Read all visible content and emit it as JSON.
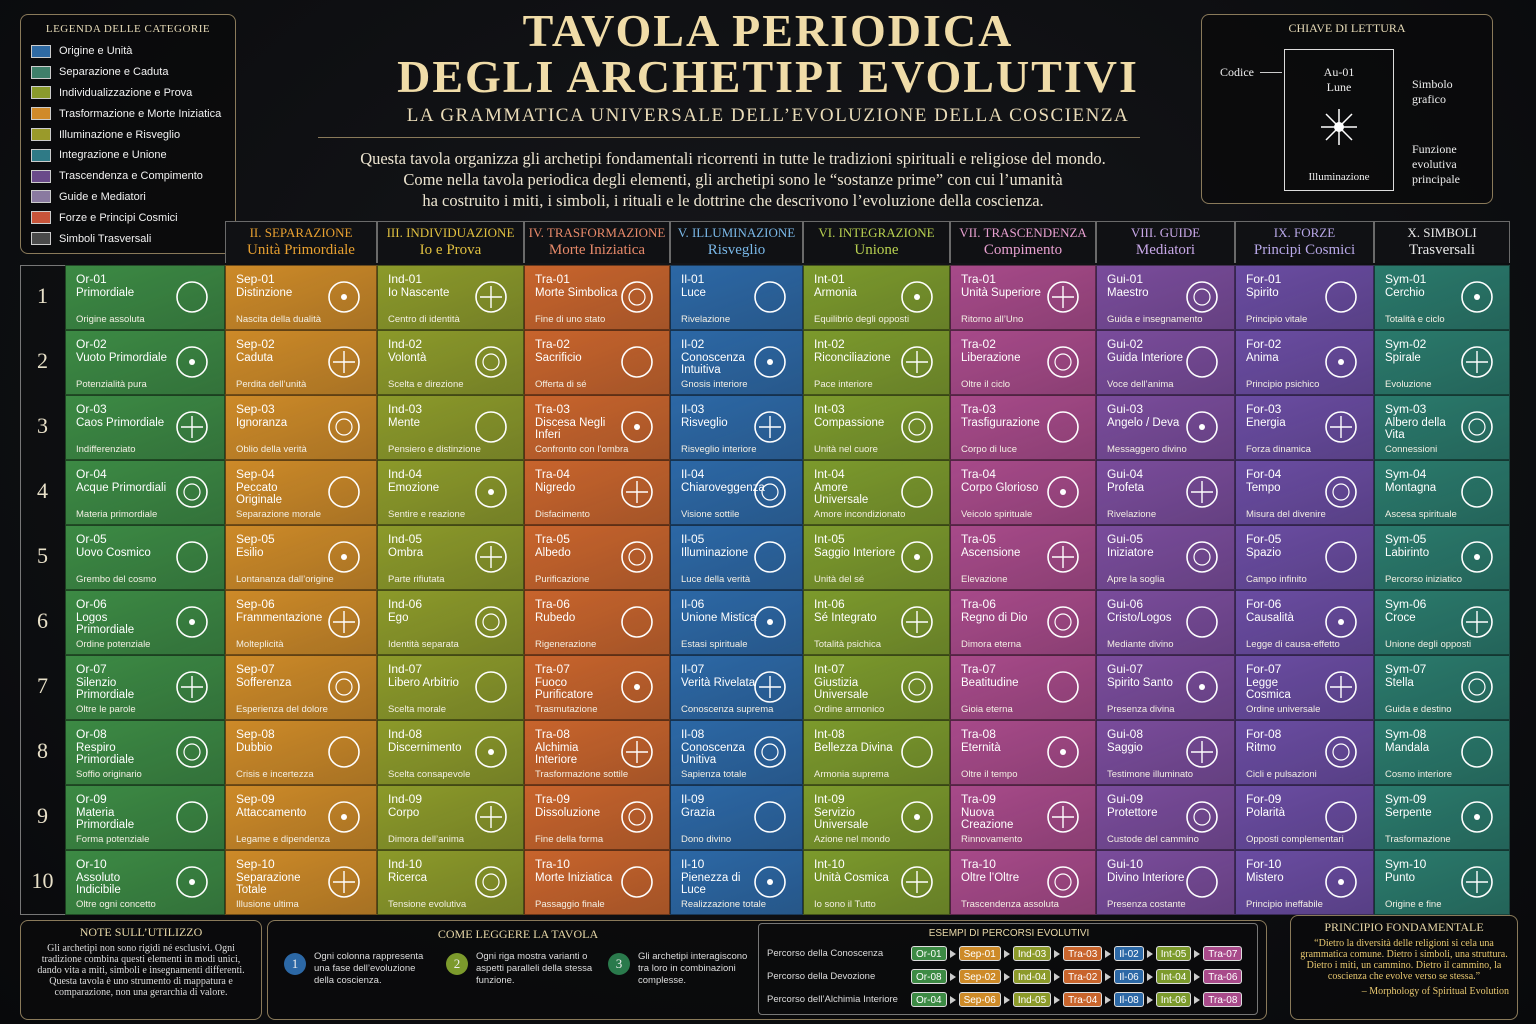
{
  "header": {
    "title_lines": [
      "TAVOLA PERIODICA",
      "DEGLI ARCHETIPI EVOLUTIVI"
    ],
    "subtitle": "LA GRAMMATICA UNIVERSALE DELL’EVOLUZIONE DELLA COSCIENZA",
    "intro_lines": [
      "Questa tavola organizza gli archetipi fondamentali ricorrenti in tutte le tradizioni spirituali e religiose del mondo.",
      "Come nella tavola periodica degli elementi, gli archetipi sono le “sostanze prime” con cui l’umanità",
      "ha costruito i miti, i simboli, i rituali e le dottrine che descrivono l’evoluzione della coscienza."
    ]
  },
  "legend": {
    "title": "LEGENDA DELLE CATEGORIE",
    "items": [
      {
        "label": "Origine e Unità",
        "color": "#2f6aa3"
      },
      {
        "label": "Separazione e Caduta",
        "color": "#3f7f6a"
      },
      {
        "label": "Individualizzazione e Prova",
        "color": "#8a9a2c"
      },
      {
        "label": "Trasformazione e Morte Iniziatica",
        "color": "#d08a2a"
      },
      {
        "label": "Illuminazione e Risveglio",
        "color": "#9a9a2a"
      },
      {
        "label": "Integrazione e Unione",
        "color": "#2f7a86"
      },
      {
        "label": "Trascendenza e Compimento",
        "color": "#6a4a8a"
      },
      {
        "label": "Guide e Mediatori",
        "color": "#8a7aa0"
      },
      {
        "label": "Forze e Principi Cosmici",
        "color": "#c8543a"
      },
      {
        "label": "Simboli Trasversali",
        "color": "#4a4a4a"
      }
    ]
  },
  "key": {
    "title": "CHIAVE DI LETTURA",
    "code_label": "Codice",
    "code": "Au-01",
    "name": "Lune",
    "function": "Illuminazione",
    "symbol_label": "Simbolo grafico",
    "function_label": "Funzione evolutiva principale"
  },
  "rows": [
    "1",
    "2",
    "3",
    "4",
    "5",
    "6",
    "7",
    "8",
    "9",
    "10"
  ],
  "columns": [
    {
      "color": "#3c8a44",
      "cells": [
        {
          "code": "Or-01",
          "name": "Primordiale",
          "function": "Origine assoluta"
        },
        {
          "code": "Or-02",
          "name": "Vuoto Primordiale",
          "function": "Potenzialità pura"
        },
        {
          "code": "Or-03",
          "name": "Caos Primordiale",
          "function": "Indifferenziato"
        },
        {
          "code": "Or-04",
          "name": "Acque Primordiali",
          "function": "Materia primordiale"
        },
        {
          "code": "Or-05",
          "name": "Uovo Cosmico",
          "function": "Grembo del cosmo"
        },
        {
          "code": "Or-06",
          "name": "Logos Primordiale",
          "function": "Ordine potenziale"
        },
        {
          "code": "Or-07",
          "name": "Silenzio Primordiale",
          "function": "Oltre le parole"
        },
        {
          "code": "Or-08",
          "name": "Respiro Primordiale",
          "function": "Soffio originario"
        },
        {
          "code": "Or-09",
          "name": "Materia Primordiale",
          "function": "Forma potenziale"
        },
        {
          "code": "Or-10",
          "name": "Assoluto Indicibile",
          "function": "Oltre ogni concetto"
        }
      ]
    },
    {
      "title": "II. SEPARAZIONE",
      "subtitle": "Unità Primordiale",
      "header_color": "#e8a030",
      "color": "#cd8a28",
      "cells": [
        {
          "code": "Sep-01",
          "name": "Distinzione",
          "function": "Nascita della dualità"
        },
        {
          "code": "Sep-02",
          "name": "Caduta",
          "function": "Perdita dell’unità"
        },
        {
          "code": "Sep-03",
          "name": "Ignoranza",
          "function": "Oblio della verità"
        },
        {
          "code": "Sep-04",
          "name": "Peccato Originale",
          "function": "Separazione morale"
        },
        {
          "code": "Sep-05",
          "name": "Esilio",
          "function": "Lontananza dall’origine"
        },
        {
          "code": "Sep-06",
          "name": "Frammentazione",
          "function": "Molteplicità"
        },
        {
          "code": "Sep-07",
          "name": "Sofferenza",
          "function": "Esperienza del dolore"
        },
        {
          "code": "Sep-08",
          "name": "Dubbio",
          "function": "Crisis e incertezza"
        },
        {
          "code": "Sep-09",
          "name": "Attaccamento",
          "function": "Legame e dipendenza"
        },
        {
          "code": "Sep-10",
          "name": "Separazione Totale",
          "function": "Illusione ultima"
        }
      ]
    },
    {
      "title": "III. INDIVIDUAZIONE",
      "subtitle": "Io e Prova",
      "header_color": "#e0c040",
      "color": "#8c9a2a",
      "cells": [
        {
          "code": "Ind-01",
          "name": "Io Nascente",
          "function": "Centro di identità"
        },
        {
          "code": "Ind-02",
          "name": "Volontà",
          "function": "Scelta e direzione"
        },
        {
          "code": "Ind-03",
          "name": "Mente",
          "function": "Pensiero e distinzione"
        },
        {
          "code": "Ind-04",
          "name": "Emozione",
          "function": "Sentire e reazione"
        },
        {
          "code": "Ind-05",
          "name": "Ombra",
          "function": "Parte rifiutata"
        },
        {
          "code": "Ind-06",
          "name": "Ego",
          "function": "Identità separata"
        },
        {
          "code": "Ind-07",
          "name": "Libero Arbitrio",
          "function": "Scelta morale"
        },
        {
          "code": "Ind-08",
          "name": "Discernimento",
          "function": "Scelta consapevole"
        },
        {
          "code": "Ind-09",
          "name": "Corpo",
          "function": "Dimora dell’anima"
        },
        {
          "code": "Ind-10",
          "name": "Ricerca",
          "function": "Tensione evolutiva"
        }
      ]
    },
    {
      "title": "IV. TRASFORMAZIONE",
      "subtitle": "Morte Iniziatica",
      "header_color": "#e88a6a",
      "color": "#c8642c",
      "cells": [
        {
          "code": "Tra-01",
          "name": "Morte Simbolica",
          "function": "Fine di uno stato"
        },
        {
          "code": "Tra-02",
          "name": "Sacrificio",
          "function": "Offerta di sé"
        },
        {
          "code": "Tra-03",
          "name": "Discesa Negli Inferi",
          "function": "Confronto con l’ombra"
        },
        {
          "code": "Tra-04",
          "name": "Nigredo",
          "function": "Disfacimento"
        },
        {
          "code": "Tra-05",
          "name": "Albedo",
          "function": "Purificazione"
        },
        {
          "code": "Tra-06",
          "name": "Rubedo",
          "function": "Rigenerazione"
        },
        {
          "code": "Tra-07",
          "name": "Fuoco Purificatore",
          "function": "Trasmutazione"
        },
        {
          "code": "Tra-08",
          "name": "Alchimia Interiore",
          "function": "Trasformazione sottile"
        },
        {
          "code": "Tra-09",
          "name": "Dissoluzione",
          "function": "Fine della forma"
        },
        {
          "code": "Tra-10",
          "name": "Morte Iniziatica",
          "function": "Passaggio finale"
        }
      ]
    },
    {
      "title": "V. ILLUMINAZIONE",
      "subtitle": "Risveglio",
      "header_color": "#7ab8e8",
      "color": "#2c68a6",
      "cells": [
        {
          "code": "Il-01",
          "name": "Luce",
          "function": "Rivelazione"
        },
        {
          "code": "Il-02",
          "name": "Conoscenza Intuitiva",
          "function": "Gnosis interiore"
        },
        {
          "code": "Il-03",
          "name": "Risveglio",
          "function": "Risveglio interiore"
        },
        {
          "code": "Il-04",
          "name": "Chiaroveggenza",
          "function": "Visione sottile"
        },
        {
          "code": "Il-05",
          "name": "Illuminazione",
          "function": "Luce della verità"
        },
        {
          "code": "Il-06",
          "name": "Unione Mistica",
          "function": "Estasi spirituale"
        },
        {
          "code": "Il-07",
          "name": "Verità Rivelata",
          "function": "Conoscenza suprema"
        },
        {
          "code": "Il-08",
          "name": "Conoscenza Unitiva",
          "function": "Sapienza totale"
        },
        {
          "code": "Il-09",
          "name": "Grazia",
          "function": "Dono divino"
        },
        {
          "code": "Il-10",
          "name": "Pienezza di Luce",
          "function": "Realizzazione totale"
        }
      ]
    },
    {
      "title": "VI. INTEGRAZIONE",
      "subtitle": "Unione",
      "header_color": "#b8d050",
      "color": "#7c9a2c",
      "cells": [
        {
          "code": "Int-01",
          "name": "Armonia",
          "function": "Equilibrio degli opposti"
        },
        {
          "code": "Int-02",
          "name": "Riconciliazione",
          "function": "Pace interiore"
        },
        {
          "code": "Int-03",
          "name": "Compassione",
          "function": "Unità nel cuore"
        },
        {
          "code": "Int-04",
          "name": "Amore Universale",
          "function": "Amore incondizionato"
        },
        {
          "code": "Int-05",
          "name": "Saggio Interiore",
          "function": "Unità del sé"
        },
        {
          "code": "Int-06",
          "name": "Sé Integrato",
          "function": "Totalità psichica"
        },
        {
          "code": "Int-07",
          "name": "Giustizia Universale",
          "function": "Ordine armonico"
        },
        {
          "code": "Int-08",
          "name": "Bellezza Divina",
          "function": "Armonia suprema"
        },
        {
          "code": "Int-09",
          "name": "Servizio Universale",
          "function": "Azione nel mondo"
        },
        {
          "code": "Int-10",
          "name": "Unità Cosmica",
          "function": "Io sono il Tutto"
        }
      ]
    },
    {
      "title": "VII. TRASCENDENZA",
      "subtitle": "Compimento",
      "header_color": "#e8a0d0",
      "color": "#a84a8a",
      "cells": [
        {
          "code": "Tra-01",
          "name": "Unità Superiore",
          "function": "Ritorno all’Uno"
        },
        {
          "code": "Tra-02",
          "name": "Liberazione",
          "function": "Oltre il ciclo"
        },
        {
          "code": "Tra-03",
          "name": "Trasfigurazione",
          "function": "Corpo di luce"
        },
        {
          "code": "Tra-04",
          "name": "Corpo Glorioso",
          "function": "Veicolo spirituale"
        },
        {
          "code": "Tra-05",
          "name": "Ascensione",
          "function": "Elevazione"
        },
        {
          "code": "Tra-06",
          "name": "Regno di Dio",
          "function": "Dimora eterna"
        },
        {
          "code": "Tra-07",
          "name": "Beatitudine",
          "function": "Gioia eterna"
        },
        {
          "code": "Tra-08",
          "name": "Eternità",
          "function": "Oltre il tempo"
        },
        {
          "code": "Tra-09",
          "name": "Nuova Creazione",
          "function": "Rinnovamento"
        },
        {
          "code": "Tra-10",
          "name": "Oltre l’Oltre",
          "function": "Trascendenza assoluta"
        }
      ]
    },
    {
      "title": "VIII. GUIDE",
      "subtitle": "Mediatori",
      "header_color": "#c8a8e8",
      "color": "#7a4c9c",
      "cells": [
        {
          "code": "Gui-01",
          "name": "Maestro",
          "function": "Guida e insegnamento"
        },
        {
          "code": "Gui-02",
          "name": "Guida Interiore",
          "function": "Voce dell’anima"
        },
        {
          "code": "Gui-03",
          "name": "Angelo / Deva",
          "function": "Messaggero divino"
        },
        {
          "code": "Gui-04",
          "name": "Profeta",
          "function": "Rivelazione"
        },
        {
          "code": "Gui-05",
          "name": "Iniziatore",
          "function": "Apre la soglia"
        },
        {
          "code": "Gui-06",
          "name": "Cristo/Logos",
          "function": "Mediante divino"
        },
        {
          "code": "Gui-07",
          "name": "Spirito Santo",
          "function": "Presenza divina"
        },
        {
          "code": "Gui-08",
          "name": "Saggio",
          "function": "Testimone illuminato"
        },
        {
          "code": "Gui-09",
          "name": "Protettore",
          "function": "Custode del cammino"
        },
        {
          "code": "Gui-10",
          "name": "Divino Interiore",
          "function": "Presenza costante"
        }
      ]
    },
    {
      "title": "IX. FORZE",
      "subtitle": "Principi Cosmici",
      "header_color": "#b8a8e8",
      "color": "#6a4ca2",
      "cells": [
        {
          "code": "For-01",
          "name": "Spirito",
          "function": "Principio vitale"
        },
        {
          "code": "For-02",
          "name": "Anima",
          "function": "Principio psichico"
        },
        {
          "code": "For-03",
          "name": "Energia",
          "function": "Forza dinamica"
        },
        {
          "code": "For-04",
          "name": "Tempo",
          "function": "Misura del divenire"
        },
        {
          "code": "For-05",
          "name": "Spazio",
          "function": "Campo infinito"
        },
        {
          "code": "For-06",
          "name": "Causalità",
          "function": "Legge di causa-effetto"
        },
        {
          "code": "For-07",
          "name": "Legge Cosmica",
          "function": "Ordine universale"
        },
        {
          "code": "For-08",
          "name": "Ritmo",
          "function": "Cicli e pulsazioni"
        },
        {
          "code": "For-09",
          "name": "Polarità",
          "function": "Opposti complementari"
        },
        {
          "code": "For-10",
          "name": "Mistero",
          "function": "Principio ineffabile"
        }
      ]
    },
    {
      "title": "X. SIMBOLI",
      "subtitle": "Trasversali",
      "header_color": "#e8e8e8",
      "color": "#2a7a6c",
      "cells": [
        {
          "code": "Sym-01",
          "name": "Cerchio",
          "function": "Totalità e ciclo"
        },
        {
          "code": "Sym-02",
          "name": "Spirale",
          "function": "Evoluzione"
        },
        {
          "code": "Sym-03",
          "name": "Albero della Vita",
          "function": "Connessioni"
        },
        {
          "code": "Sym-04",
          "name": "Montagna",
          "function": "Ascesa spirituale"
        },
        {
          "code": "Sym-05",
          "name": "Labirinto",
          "function": "Percorso iniziatico"
        },
        {
          "code": "Sym-06",
          "name": "Croce",
          "function": "Unione degli opposti"
        },
        {
          "code": "Sym-07",
          "name": "Stella",
          "function": "Guida e destino"
        },
        {
          "code": "Sym-08",
          "name": "Mandala",
          "function": "Cosmo interiore"
        },
        {
          "code": "Sym-09",
          "name": "Serpente",
          "function": "Trasformazione"
        },
        {
          "code": "Sym-10",
          "name": "Punto",
          "function": "Origine e fine"
        }
      ]
    }
  ],
  "notes": {
    "title": "NOTE SULL’UTILIZZO",
    "paragraphs": [
      "Gli archetipi non sono rigidi né esclusivi. Ogni tradizione combina questi elementi in modi unici, dando vita a miti, simboli e insegnamenti differenti.",
      "Questa tavola è uno strumento di mappatura e comparazione, non una gerarchia di valore."
    ]
  },
  "how_to_read": {
    "title": "COME LEGGERE LA TAVOLA",
    "items": [
      {
        "number": "1",
        "text": "Ogni colonna rappresenta una fase dell’evoluzione della coscienza.",
        "color": "#2c68a6"
      },
      {
        "number": "2",
        "text": "Ogni riga mostra varianti o aspetti paralleli della stessa funzione.",
        "color": "#7c9a2c"
      },
      {
        "number": "3",
        "text": "Gli archetipi interagiscono tra loro in combinazioni complesse.",
        "color": "#2a7a4c"
      }
    ]
  },
  "paths": {
    "title": "ESEMPI DI PERCORSI EVOLUTIVI",
    "items": [
      {
        "name": "Percorso della Conoscenza",
        "codes": [
          "Or-01",
          "Sep-01",
          "Ind-03",
          "Tra-03",
          "Il-02",
          "Int-05",
          "Tra-07"
        ]
      },
      {
        "name": "Percorso della Devozione",
        "codes": [
          "Or-08",
          "Sep-02",
          "Ind-04",
          "Tra-02",
          "Il-06",
          "Int-04",
          "Tra-06"
        ]
      },
      {
        "name": "Percorso dell’Alchimia Interiore",
        "codes": [
          "Or-04",
          "Sep-06",
          "Ind-05",
          "Tra-04",
          "Il-08",
          "Int-06",
          "Tra-08"
        ]
      }
    ]
  },
  "principle": {
    "title": "PRINCIPIO FONDAMENTALE",
    "quote": "“Dietro la diversità delle religioni si cela una grammatica comune. Dietro i simboli, una struttura. Dietro i miti, un cammino. Dietro il cammino, la coscienza che evolve verso se stessa.”",
    "attribution": "– Morphology of Spiritual Evolution"
  }
}
